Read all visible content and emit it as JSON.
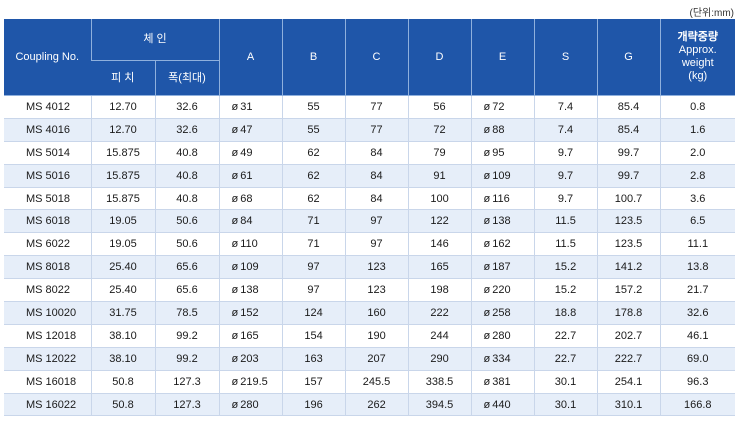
{
  "unit_note": "(단위:mm)",
  "headers": {
    "coupling_no": "Coupling No.",
    "chain": "체 인",
    "pitch": "피 치",
    "width": "폭(최대)",
    "a": "A",
    "b": "B",
    "c": "C",
    "d": "D",
    "e": "E",
    "s": "S",
    "g": "G",
    "weight_kr": "개략중량",
    "weight_en1": "Approx.",
    "weight_en2": "weight",
    "weight_unit": "(kg)"
  },
  "diameter_symbol": "ø",
  "rows": [
    {
      "no": "MS 4012",
      "pitch": "12.70",
      "width": "32.6",
      "a": "31",
      "b": "55",
      "c": "77",
      "d": "56",
      "e": "72",
      "s": "7.4",
      "g": "85.4",
      "w": "0.8"
    },
    {
      "no": "MS 4016",
      "pitch": "12.70",
      "width": "32.6",
      "a": "47",
      "b": "55",
      "c": "77",
      "d": "72",
      "e": "88",
      "s": "7.4",
      "g": "85.4",
      "w": "1.6"
    },
    {
      "no": "MS 5014",
      "pitch": "15.875",
      "width": "40.8",
      "a": "49",
      "b": "62",
      "c": "84",
      "d": "79",
      "e": "95",
      "s": "9.7",
      "g": "99.7",
      "w": "2.0"
    },
    {
      "no": "MS 5016",
      "pitch": "15.875",
      "width": "40.8",
      "a": "61",
      "b": "62",
      "c": "84",
      "d": "91",
      "e": "109",
      "s": "9.7",
      "g": "99.7",
      "w": "2.8"
    },
    {
      "no": "MS 5018",
      "pitch": "15.875",
      "width": "40.8",
      "a": "68",
      "b": "62",
      "c": "84",
      "d": "100",
      "e": "116",
      "s": "9.7",
      "g": "100.7",
      "w": "3.6"
    },
    {
      "no": "MS 6018",
      "pitch": "19.05",
      "width": "50.6",
      "a": "84",
      "b": "71",
      "c": "97",
      "d": "122",
      "e": "138",
      "s": "11.5",
      "g": "123.5",
      "w": "6.5"
    },
    {
      "no": "MS 6022",
      "pitch": "19.05",
      "width": "50.6",
      "a": "110",
      "b": "71",
      "c": "97",
      "d": "146",
      "e": "162",
      "s": "11.5",
      "g": "123.5",
      "w": "11.1"
    },
    {
      "no": "MS 8018",
      "pitch": "25.40",
      "width": "65.6",
      "a": "109",
      "b": "97",
      "c": "123",
      "d": "165",
      "e": "187",
      "s": "15.2",
      "g": "141.2",
      "w": "13.8"
    },
    {
      "no": "MS 8022",
      "pitch": "25.40",
      "width": "65.6",
      "a": "138",
      "b": "97",
      "c": "123",
      "d": "198",
      "e": "220",
      "s": "15.2",
      "g": "157.2",
      "w": "21.7"
    },
    {
      "no": "MS 10020",
      "pitch": "31.75",
      "width": "78.5",
      "a": "152",
      "b": "124",
      "c": "160",
      "d": "222",
      "e": "258",
      "s": "18.8",
      "g": "178.8",
      "w": "32.6"
    },
    {
      "no": "MS 12018",
      "pitch": "38.10",
      "width": "99.2",
      "a": "165",
      "b": "154",
      "c": "190",
      "d": "244",
      "e": "280",
      "s": "22.7",
      "g": "202.7",
      "w": "46.1"
    },
    {
      "no": "MS 12022",
      "pitch": "38.10",
      "width": "99.2",
      "a": "203",
      "b": "163",
      "c": "207",
      "d": "290",
      "e": "334",
      "s": "22.7",
      "g": "222.7",
      "w": "69.0"
    },
    {
      "no": "MS 16018",
      "pitch": "50.8",
      "width": "127.3",
      "a": "219.5",
      "b": "157",
      "c": "245.5",
      "d": "338.5",
      "e": "381",
      "s": "30.1",
      "g": "254.1",
      "w": "96.3"
    },
    {
      "no": "MS 16022",
      "pitch": "50.8",
      "width": "127.3",
      "a": "280",
      "b": "196",
      "c": "262",
      "d": "394.5",
      "e": "440",
      "s": "30.1",
      "g": "310.1",
      "w": "166.8"
    }
  ]
}
